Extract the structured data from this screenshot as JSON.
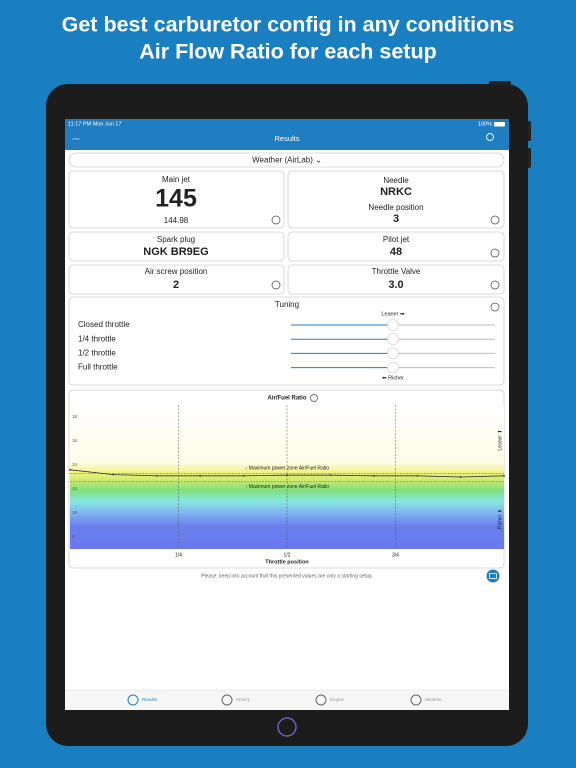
{
  "header": {
    "line1": "Get best carburetor config in any conditions",
    "line2": "Air Flow Ratio for each setup"
  },
  "status_bar": {
    "time": "11:17 PM   Mon Jun 17",
    "battery": "100%"
  },
  "nav": {
    "title": "Results"
  },
  "selector": "Weather (AirLab) ⌄",
  "cards": {
    "main_jet": {
      "label": "Main jet",
      "value": "145",
      "exact": "144.98"
    },
    "needle": {
      "label": "Needle",
      "value": "NRKC",
      "position_label": "Needle position",
      "position": "3"
    },
    "spark_plug": {
      "label": "Spark plug",
      "value": "NGK BR9EG"
    },
    "pilot_jet": {
      "label": "Pilot jet",
      "value": "48"
    },
    "air_screw": {
      "label": "Air screw position",
      "value": "2"
    },
    "throttle_valve": {
      "label": "Throttle Valve",
      "value": "3.0"
    }
  },
  "tuning": {
    "title": "Tuning",
    "leaner": "Leaner ➡",
    "richer": "⬅ Richer",
    "rows": [
      "Closed throttle",
      "1/4 throttle",
      "1/2 throttle",
      "Full throttle"
    ]
  },
  "chart_data": {
    "type": "line",
    "title": "Air/Fuel Ratio",
    "x_label": "Throttle position",
    "x": [
      0,
      0.1,
      0.2,
      0.3,
      0.4,
      0.5,
      0.6,
      0.7,
      0.8,
      0.9,
      1
    ],
    "values": [
      13.6,
      13.2,
      13.1,
      13.1,
      13.1,
      13.15,
      13.15,
      13.1,
      13.1,
      13.0,
      13.1
    ],
    "color": "#333333",
    "xlim": [
      0,
      1
    ],
    "xticks": [
      {
        "value": 0.25,
        "label": "1/4"
      },
      {
        "value": 0.5,
        "label": "1/2"
      },
      {
        "value": 0.75,
        "label": "3/4"
      }
    ],
    "ylim": [
      7,
      19
    ],
    "yticks": [
      8,
      10,
      12,
      14,
      16,
      18
    ],
    "grid": true,
    "annotations": [
      {
        "text": "↓ Maximum power zone Air/Fuel Ratio",
        "value": 13.3
      },
      {
        "text": "↑ Maximum power zone Air/Fuel Ratio",
        "value": 12.6
      }
    ],
    "side_labels": [
      "Leaner ⬆",
      "Richer ⬇"
    ]
  },
  "footnote": "Please, keep into account that this presented values are only a starting setup.",
  "tabs": [
    "Results",
    "History",
    "Engine",
    "Weather"
  ]
}
